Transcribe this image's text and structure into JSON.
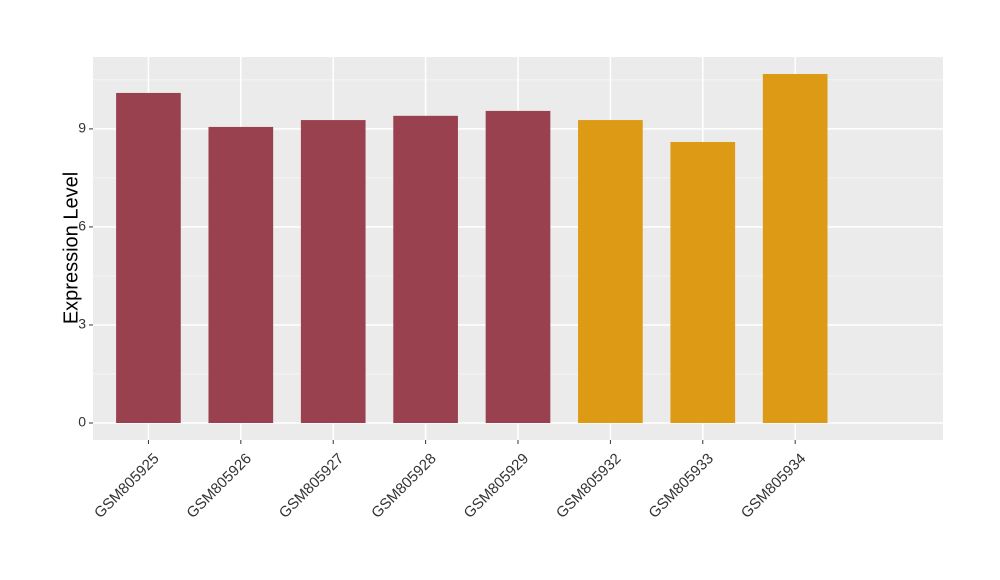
{
  "chart_data": {
    "type": "bar",
    "y_label": "Expression Level",
    "categories": [
      "GSM805925",
      "GSM805926",
      "GSM805927",
      "GSM805928",
      "GSM805929",
      "GSM805932",
      "GSM805933",
      "GSM805934"
    ],
    "values": [
      10.1,
      9.06,
      9.27,
      9.4,
      9.55,
      9.27,
      8.6,
      10.68
    ],
    "colors": [
      "#9a4150",
      "#9a4150",
      "#9a4150",
      "#9a4150",
      "#9a4150",
      "#dc9a15",
      "#dc9a15",
      "#dc9a15"
    ],
    "ylim": [
      -0.52,
      11.2
    ],
    "yticks": [
      0,
      3,
      6,
      9
    ],
    "minor_yticks": [
      1.5,
      4.5,
      7.5,
      10.5
    ],
    "grid": true
  }
}
